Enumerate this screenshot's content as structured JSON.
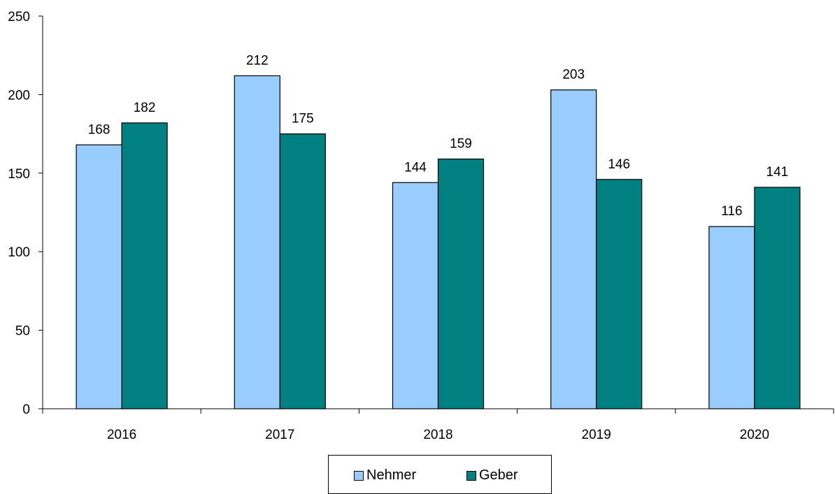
{
  "chart_data": {
    "type": "bar",
    "categories": [
      "2016",
      "2017",
      "2018",
      "2019",
      "2020"
    ],
    "series": [
      {
        "name": "Nehmer",
        "values": [
          168,
          212,
          144,
          203,
          116
        ],
        "color": "#99ccff"
      },
      {
        "name": "Geber",
        "values": [
          182,
          175,
          159,
          146,
          141
        ],
        "color": "#008080"
      }
    ],
    "y_ticks": [
      "0",
      "50",
      "100",
      "150",
      "200",
      "250"
    ],
    "ylim": [
      0,
      250
    ],
    "title": "",
    "xlabel": "",
    "ylabel": "",
    "grid": false,
    "data_labels": true,
    "legend_position": "bottom-center"
  },
  "legend": {
    "items": [
      {
        "label": "Nehmer",
        "color": "#99ccff"
      },
      {
        "label": "Geber",
        "color": "#008080"
      }
    ]
  }
}
